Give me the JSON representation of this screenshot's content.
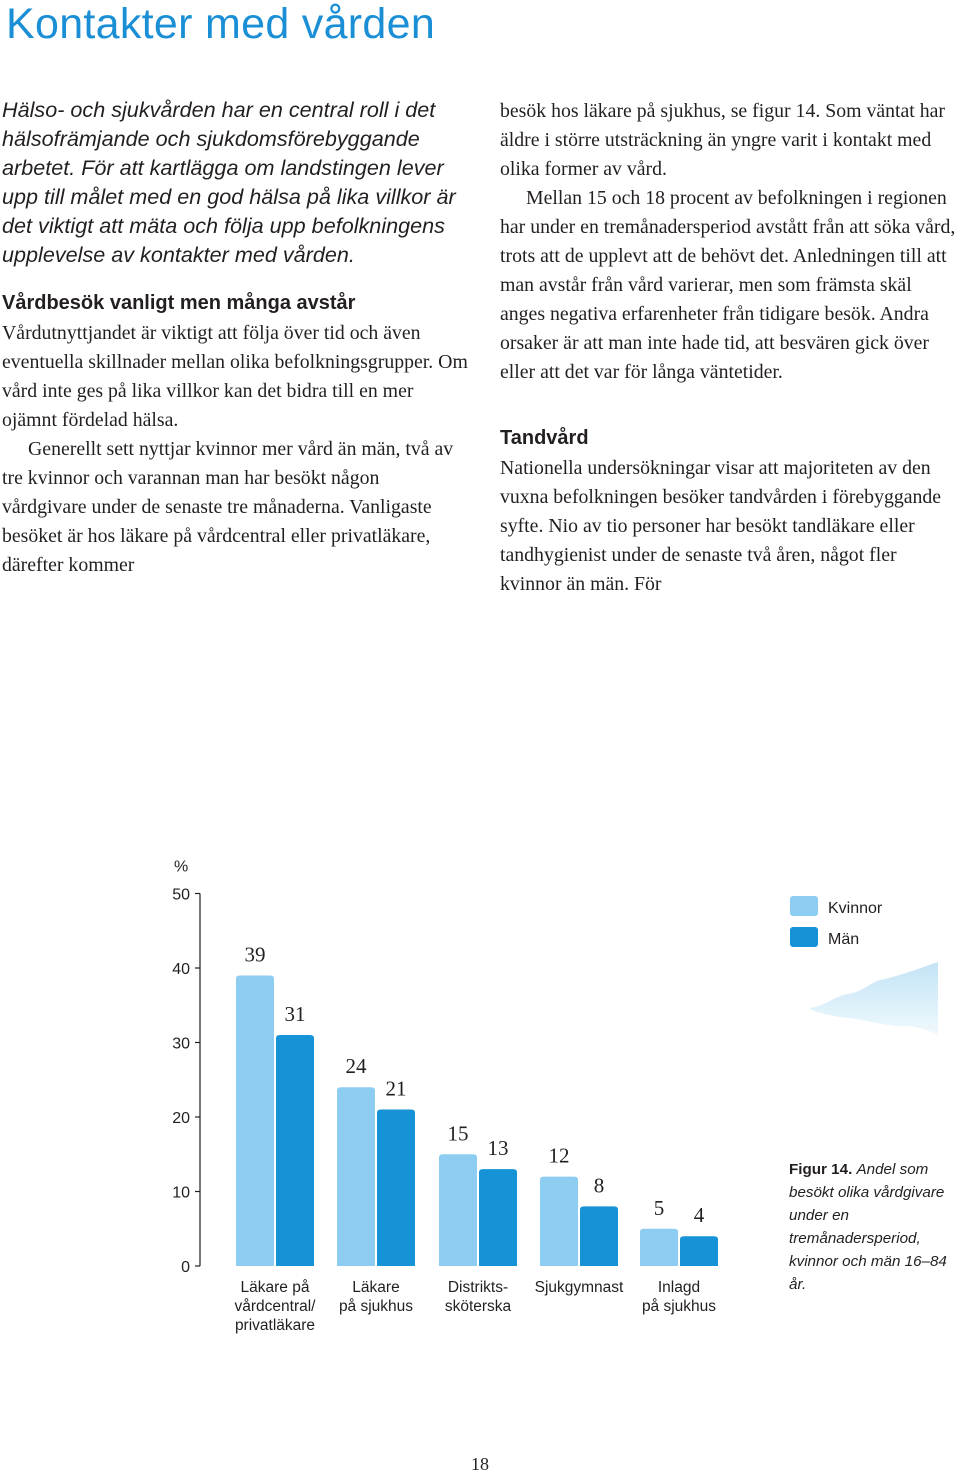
{
  "page": {
    "title": "Kontakter med vården",
    "page_number": "18"
  },
  "left_column": {
    "intro": "Hälso- och sjukvården har en central roll i det hälsofrämjande och sjukdomsförebyggande arbetet. För att kartlägga om landstingen lever upp till målet med en god hälsa på lika villkor är det viktigt att mäta och följa upp befolkningens upplevelse av kontakter med vården.",
    "section_heading": "Vårdbesök vanligt men många avstår",
    "paragraph_1": "Vårdutnyttjandet är viktigt att följa över tid och även eventuella skillnader mellan olika befolkningsgrupper. Om vård inte ges på lika villkor kan det bidra till en mer ojämnt fördelad hälsa.",
    "paragraph_2": "Generellt sett nyttjar kvinnor mer vård än män, två av tre kvinnor och varannan man har besökt någon vårdgivare under de senaste tre månaderna. Vanligaste besöket är hos läkare på vårdcentral eller privatläkare, därefter kommer"
  },
  "right_column": {
    "paragraph_continued": "besök hos läkare på sjukhus, se figur 14. Som väntat har äldre i större utsträckning än yngre varit i kontakt med olika former av vård.",
    "paragraph_3": "Mellan 15 och 18 procent av befolkningen i regionen har under en tremånadersperiod avstått från att söka vård, trots att de upplevt att de behövt det. Anledningen till att man avstår från vård varierar, men som främsta skäl anges negativa erfarenheter från tidigare besök. Andra orsaker är att man inte hade tid, att besvären gick över eller att det var för långa väntetider.",
    "section_heading": "Tandvård",
    "paragraph_4": "Nationella undersökningar visar att majoriteten av den vuxna befolkningen besöker tandvården i förebyggande syfte. Nio av tio personer har besökt tandläkare eller tandhygienist under de senaste två åren, något fler kvinnor än män. För"
  },
  "figure": {
    "label": "Figur 14.",
    "caption": "Andel som besökt olika vårdgivare under en tremånadersperiod, kvinnor och män 16–84 år."
  },
  "chart_data": {
    "type": "bar",
    "ylabel": "%",
    "ylim": [
      0,
      50
    ],
    "yticks": [
      "0",
      "10",
      "20",
      "30",
      "40",
      "50"
    ],
    "categories": [
      [
        "Läkare på",
        "vårdcentral/",
        "privatläkare"
      ],
      [
        "Läkare",
        "på sjukhus"
      ],
      [
        "Distrikts-",
        "sköterska"
      ],
      [
        "Sjukgymnast"
      ],
      [
        "Inlagd",
        "på sjukhus"
      ]
    ],
    "series": [
      {
        "name": "Kvinnor",
        "color": "#8ccdf1",
        "values": [
          39,
          24,
          15,
          12,
          5
        ]
      },
      {
        "name": "Män",
        "color": "#1692d6",
        "values": [
          31,
          21,
          13,
          8,
          4
        ]
      }
    ],
    "legend_position": "top-right",
    "grid": false
  }
}
